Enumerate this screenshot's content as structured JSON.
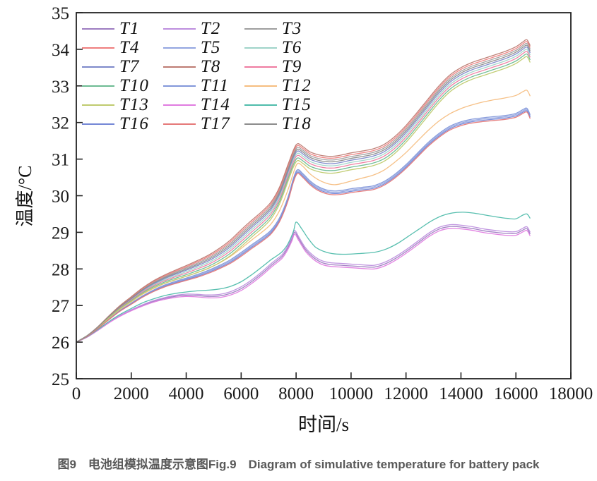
{
  "figure": {
    "caption": "图9　电池组模拟温度示意图Fig.9　Diagram of simulative temperature for battery pack"
  },
  "chart_data": {
    "type": "line",
    "title": "",
    "xlabel": "时间/s",
    "ylabel": "温度/°C",
    "xlim": [
      0,
      18000
    ],
    "ylim": [
      25,
      35
    ],
    "xticks": [
      0,
      2000,
      4000,
      6000,
      8000,
      10000,
      12000,
      14000,
      16000,
      18000
    ],
    "yticks": [
      25,
      26,
      27,
      28,
      29,
      30,
      31,
      32,
      33,
      34,
      35
    ],
    "grid": false,
    "legend_position": "upper-left-inside",
    "legend_columns": 3,
    "axis_color": "#222222",
    "spread_ramp": {
      "t0": 500,
      "t1": 6000
    },
    "base_curves": {
      "top": [
        [
          0,
          26.0
        ],
        [
          400,
          26.18
        ],
        [
          800,
          26.42
        ],
        [
          1200,
          26.7
        ],
        [
          1600,
          26.96
        ],
        [
          2000,
          27.18
        ],
        [
          2400,
          27.4
        ],
        [
          2800,
          27.58
        ],
        [
          3200,
          27.72
        ],
        [
          3600,
          27.84
        ],
        [
          4000,
          27.95
        ],
        [
          4400,
          28.07
        ],
        [
          4800,
          28.2
        ],
        [
          5200,
          28.37
        ],
        [
          5600,
          28.58
        ],
        [
          6000,
          28.85
        ],
        [
          6400,
          29.12
        ],
        [
          6800,
          29.38
        ],
        [
          7100,
          29.62
        ],
        [
          7400,
          30.02
        ],
        [
          7700,
          30.62
        ],
        [
          7900,
          31.02
        ],
        [
          8050,
          31.2
        ],
        [
          8250,
          31.12
        ],
        [
          8500,
          30.98
        ],
        [
          8800,
          30.9
        ],
        [
          9100,
          30.86
        ],
        [
          9400,
          30.86
        ],
        [
          9700,
          30.9
        ],
        [
          10000,
          30.95
        ],
        [
          10400,
          31.0
        ],
        [
          10800,
          31.06
        ],
        [
          11200,
          31.18
        ],
        [
          11600,
          31.4
        ],
        [
          12000,
          31.7
        ],
        [
          12400,
          32.05
        ],
        [
          12800,
          32.42
        ],
        [
          13200,
          32.78
        ],
        [
          13600,
          33.08
        ],
        [
          14000,
          33.28
        ],
        [
          14400,
          33.42
        ],
        [
          14800,
          33.52
        ],
        [
          15200,
          33.62
        ],
        [
          15600,
          33.72
        ],
        [
          16000,
          33.85
        ],
        [
          16250,
          33.98
        ],
        [
          16400,
          34.04
        ],
        [
          16520,
          33.88
        ]
      ],
      "orange_mid": [
        [
          0,
          26.0
        ],
        [
          400,
          26.17
        ],
        [
          800,
          26.4
        ],
        [
          1200,
          26.66
        ],
        [
          1600,
          26.9
        ],
        [
          2000,
          27.1
        ],
        [
          2400,
          27.3
        ],
        [
          2800,
          27.46
        ],
        [
          3200,
          27.6
        ],
        [
          3600,
          27.7
        ],
        [
          4000,
          27.8
        ],
        [
          4400,
          27.9
        ],
        [
          4800,
          28.02
        ],
        [
          5200,
          28.16
        ],
        [
          5600,
          28.34
        ],
        [
          6000,
          28.56
        ],
        [
          6400,
          28.8
        ],
        [
          6800,
          29.03
        ],
        [
          7100,
          29.24
        ],
        [
          7400,
          29.6
        ],
        [
          7700,
          30.15
        ],
        [
          7900,
          30.62
        ],
        [
          8050,
          30.88
        ],
        [
          8250,
          30.8
        ],
        [
          8500,
          30.6
        ],
        [
          8800,
          30.44
        ],
        [
          9100,
          30.34
        ],
        [
          9400,
          30.3
        ],
        [
          9700,
          30.34
        ],
        [
          10000,
          30.4
        ],
        [
          10400,
          30.48
        ],
        [
          10800,
          30.56
        ],
        [
          11200,
          30.7
        ],
        [
          11600,
          30.92
        ],
        [
          12000,
          31.18
        ],
        [
          12400,
          31.48
        ],
        [
          12800,
          31.78
        ],
        [
          13200,
          32.04
        ],
        [
          13600,
          32.24
        ],
        [
          14000,
          32.38
        ],
        [
          14400,
          32.48
        ],
        [
          14800,
          32.56
        ],
        [
          15200,
          32.62
        ],
        [
          15600,
          32.67
        ],
        [
          16000,
          32.74
        ],
        [
          16250,
          32.84
        ],
        [
          16400,
          32.88
        ],
        [
          16520,
          32.72
        ]
      ],
      "blue_mid": [
        [
          0,
          26.0
        ],
        [
          400,
          26.16
        ],
        [
          800,
          26.38
        ],
        [
          1200,
          26.63
        ],
        [
          1600,
          26.86
        ],
        [
          2000,
          27.05
        ],
        [
          2400,
          27.24
        ],
        [
          2800,
          27.4
        ],
        [
          3200,
          27.53
        ],
        [
          3600,
          27.63
        ],
        [
          4000,
          27.72
        ],
        [
          4400,
          27.81
        ],
        [
          4800,
          27.92
        ],
        [
          5200,
          28.05
        ],
        [
          5600,
          28.2
        ],
        [
          6000,
          28.4
        ],
        [
          6400,
          28.62
        ],
        [
          6800,
          28.83
        ],
        [
          7100,
          29.02
        ],
        [
          7400,
          29.35
        ],
        [
          7700,
          29.9
        ],
        [
          7900,
          30.42
        ],
        [
          8050,
          30.66
        ],
        [
          8250,
          30.55
        ],
        [
          8500,
          30.36
        ],
        [
          8800,
          30.2
        ],
        [
          9100,
          30.11
        ],
        [
          9400,
          30.08
        ],
        [
          9700,
          30.1
        ],
        [
          10000,
          30.14
        ],
        [
          10400,
          30.18
        ],
        [
          10800,
          30.22
        ],
        [
          11200,
          30.34
        ],
        [
          11600,
          30.54
        ],
        [
          12000,
          30.8
        ],
        [
          12400,
          31.1
        ],
        [
          12800,
          31.4
        ],
        [
          13200,
          31.65
        ],
        [
          13600,
          31.85
        ],
        [
          14000,
          31.97
        ],
        [
          14400,
          32.04
        ],
        [
          14800,
          32.08
        ],
        [
          15200,
          32.11
        ],
        [
          15600,
          32.14
        ],
        [
          16000,
          32.2
        ],
        [
          16250,
          32.3
        ],
        [
          16400,
          32.34
        ],
        [
          16520,
          32.16
        ]
      ],
      "teal_low": [
        [
          0,
          26.0
        ],
        [
          400,
          26.15
        ],
        [
          800,
          26.35
        ],
        [
          1200,
          26.57
        ],
        [
          1600,
          26.76
        ],
        [
          2000,
          26.92
        ],
        [
          2400,
          27.07
        ],
        [
          2800,
          27.18
        ],
        [
          3200,
          27.27
        ],
        [
          3600,
          27.33
        ],
        [
          4000,
          27.37
        ],
        [
          4400,
          27.4
        ],
        [
          4800,
          27.42
        ],
        [
          5200,
          27.45
        ],
        [
          5600,
          27.52
        ],
        [
          6000,
          27.65
        ],
        [
          6400,
          27.85
        ],
        [
          6800,
          28.08
        ],
        [
          7100,
          28.26
        ],
        [
          7300,
          28.36
        ],
        [
          7500,
          28.48
        ],
        [
          7700,
          28.68
        ],
        [
          7900,
          29.02
        ],
        [
          8000,
          29.28
        ],
        [
          8200,
          29.1
        ],
        [
          8450,
          28.82
        ],
        [
          8700,
          28.6
        ],
        [
          9000,
          28.48
        ],
        [
          9300,
          28.42
        ],
        [
          9700,
          28.4
        ],
        [
          10100,
          28.41
        ],
        [
          10500,
          28.43
        ],
        [
          10900,
          28.46
        ],
        [
          11300,
          28.55
        ],
        [
          11700,
          28.7
        ],
        [
          12100,
          28.9
        ],
        [
          12500,
          29.1
        ],
        [
          12900,
          29.3
        ],
        [
          13300,
          29.45
        ],
        [
          13700,
          29.53
        ],
        [
          14100,
          29.55
        ],
        [
          14500,
          29.52
        ],
        [
          14900,
          29.47
        ],
        [
          15300,
          29.42
        ],
        [
          15700,
          29.38
        ],
        [
          16000,
          29.37
        ],
        [
          16250,
          29.47
        ],
        [
          16400,
          29.5
        ],
        [
          16520,
          29.38
        ]
      ],
      "purple_low": [
        [
          0,
          26.0
        ],
        [
          400,
          26.14
        ],
        [
          800,
          26.33
        ],
        [
          1200,
          26.54
        ],
        [
          1600,
          26.72
        ],
        [
          2000,
          26.87
        ],
        [
          2400,
          27.0
        ],
        [
          2800,
          27.11
        ],
        [
          3200,
          27.19
        ],
        [
          3600,
          27.25
        ],
        [
          4000,
          27.28
        ],
        [
          4400,
          27.27
        ],
        [
          4800,
          27.25
        ],
        [
          5200,
          27.26
        ],
        [
          5600,
          27.33
        ],
        [
          6000,
          27.46
        ],
        [
          6400,
          27.66
        ],
        [
          6800,
          27.9
        ],
        [
          7100,
          28.1
        ],
        [
          7300,
          28.22
        ],
        [
          7500,
          28.35
        ],
        [
          7700,
          28.58
        ],
        [
          7850,
          28.82
        ],
        [
          7950,
          29.0
        ],
        [
          8100,
          28.82
        ],
        [
          8350,
          28.52
        ],
        [
          8650,
          28.3
        ],
        [
          8950,
          28.17
        ],
        [
          9250,
          28.12
        ],
        [
          9650,
          28.1
        ],
        [
          10050,
          28.08
        ],
        [
          10450,
          28.06
        ],
        [
          10850,
          28.05
        ],
        [
          11250,
          28.14
        ],
        [
          11650,
          28.3
        ],
        [
          12050,
          28.5
        ],
        [
          12450,
          28.72
        ],
        [
          12850,
          28.94
        ],
        [
          13250,
          29.1
        ],
        [
          13650,
          29.16
        ],
        [
          14050,
          29.14
        ],
        [
          14450,
          29.1
        ],
        [
          14850,
          29.04
        ],
        [
          15250,
          29.0
        ],
        [
          15650,
          28.97
        ],
        [
          16000,
          28.97
        ],
        [
          16250,
          29.06
        ],
        [
          16400,
          29.1
        ],
        [
          16520,
          28.95
        ]
      ]
    },
    "series": [
      {
        "name": "T1",
        "color": "#9d7cc0",
        "group": "purple_low",
        "offset": 0.0
      },
      {
        "name": "T2",
        "color": "#bd8ede",
        "group": "purple_low",
        "offset": 0.05
      },
      {
        "name": "T3",
        "color": "#9e9e9e",
        "group": "top",
        "offset": 0.12
      },
      {
        "name": "T4",
        "color": "#ee7e7e",
        "group": "top",
        "offset": 0.17
      },
      {
        "name": "T5",
        "color": "#93a5e0",
        "group": "blue_mid",
        "offset": 0.015
      },
      {
        "name": "T6",
        "color": "#9fd4c9",
        "group": "top",
        "offset": -0.04
      },
      {
        "name": "T7",
        "color": "#7d88ca",
        "group": "top",
        "offset": 0.02
      },
      {
        "name": "T8",
        "color": "#bd7b72",
        "group": "top",
        "offset": 0.22
      },
      {
        "name": "T9",
        "color": "#ee7ba0",
        "group": "top",
        "offset": -0.1
      },
      {
        "name": "T10",
        "color": "#6cbb92",
        "group": "top",
        "offset": -0.17
      },
      {
        "name": "T11",
        "color": "#8297da",
        "group": "blue_mid",
        "offset": 0.05
      },
      {
        "name": "T12",
        "color": "#f6bd7f",
        "group": "orange_mid",
        "offset": 0.0
      },
      {
        "name": "T13",
        "color": "#bfca6e",
        "group": "top",
        "offset": -0.24
      },
      {
        "name": "T14",
        "color": "#e07ce0",
        "group": "purple_low",
        "offset": -0.05
      },
      {
        "name": "T15",
        "color": "#4fbcab",
        "group": "teal_low",
        "offset": 0.0
      },
      {
        "name": "T16",
        "color": "#7487d6",
        "group": "blue_mid",
        "offset": -0.02
      },
      {
        "name": "T17",
        "color": "#e57878",
        "group": "blue_mid",
        "offset": -0.055
      },
      {
        "name": "T18",
        "color": "#8c8c8c",
        "group": "top",
        "offset": 0.07
      }
    ]
  }
}
